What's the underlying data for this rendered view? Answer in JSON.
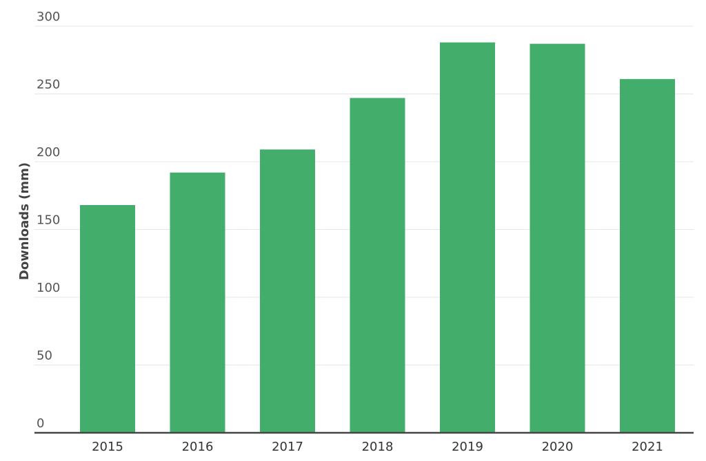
{
  "chart_data": {
    "type": "bar",
    "categories": [
      "2015",
      "2016",
      "2017",
      "2018",
      "2019",
      "2020",
      "2021"
    ],
    "values": [
      168,
      192,
      209,
      247,
      288,
      287,
      261
    ],
    "title": "",
    "xlabel": "",
    "ylabel": "Downloads (mm)",
    "ylim": [
      0,
      300
    ],
    "yticks": [
      0,
      50,
      100,
      150,
      200,
      250,
      300
    ],
    "grid": true,
    "legend": "none",
    "bar_color": "#43ae6b"
  }
}
